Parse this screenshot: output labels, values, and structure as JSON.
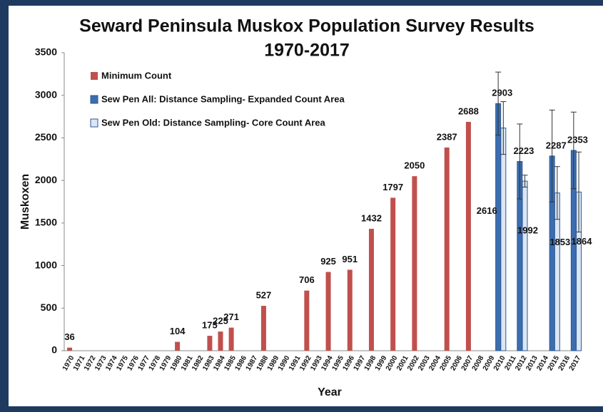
{
  "chart_data": {
    "type": "bar",
    "title": "Seward Peninsula Muskox Population Survey Results",
    "subtitle": "1970-2017",
    "x_label": "Year",
    "y_label": "Muskoxen",
    "categories": [
      "1970",
      "1971",
      "1972",
      "1973",
      "1974",
      "1975",
      "1976",
      "1977",
      "1978",
      "1979",
      "1980",
      "1981",
      "1982",
      "1983",
      "1984",
      "1985",
      "1986",
      "1987",
      "1988",
      "1989",
      "1990",
      "1991",
      "1992",
      "1993",
      "1994",
      "1995",
      "1996",
      "1997",
      "1998",
      "1999",
      "2000",
      "2001",
      "2002",
      "2003",
      "2004",
      "2005",
      "2006",
      "2007",
      "2008",
      "2009",
      "2010",
      "2011",
      "2012",
      "2013",
      "2014",
      "2015",
      "2016",
      "2017"
    ],
    "series": [
      {
        "name": "Minimum Count",
        "color": "#c0504d",
        "values": [
          36,
          null,
          null,
          null,
          null,
          null,
          null,
          null,
          null,
          null,
          104,
          null,
          null,
          175,
          225,
          271,
          null,
          null,
          527,
          null,
          null,
          null,
          706,
          null,
          925,
          null,
          951,
          null,
          1432,
          null,
          1797,
          null,
          2050,
          null,
          null,
          2387,
          null,
          2688,
          null,
          null,
          null,
          null,
          null,
          null,
          null,
          null,
          null,
          null
        ]
      },
      {
        "name": "Sew Pen All:  Distance Sampling- Expanded Count Area",
        "color": "#3c6db0",
        "values": [
          null,
          null,
          null,
          null,
          null,
          null,
          null,
          null,
          null,
          null,
          null,
          null,
          null,
          null,
          null,
          null,
          null,
          null,
          null,
          null,
          null,
          null,
          null,
          null,
          null,
          null,
          null,
          null,
          null,
          null,
          null,
          null,
          null,
          null,
          null,
          null,
          null,
          null,
          null,
          null,
          2903,
          null,
          2223,
          null,
          null,
          2287,
          null,
          2353
        ],
        "errors": [
          null,
          null,
          null,
          null,
          null,
          null,
          null,
          null,
          null,
          null,
          null,
          null,
          null,
          null,
          null,
          null,
          null,
          null,
          null,
          null,
          null,
          null,
          null,
          null,
          null,
          null,
          null,
          null,
          null,
          null,
          null,
          null,
          null,
          null,
          null,
          null,
          null,
          null,
          null,
          null,
          370,
          null,
          440,
          null,
          null,
          540,
          null,
          450
        ]
      },
      {
        "name": "Sew Pen Old: Distance Sampling- Core Count Area",
        "color": "#dce6f2",
        "values": [
          null,
          null,
          null,
          null,
          null,
          null,
          null,
          null,
          null,
          null,
          null,
          null,
          null,
          null,
          null,
          null,
          null,
          null,
          null,
          null,
          null,
          null,
          null,
          null,
          null,
          null,
          null,
          null,
          null,
          null,
          null,
          null,
          null,
          null,
          null,
          null,
          null,
          null,
          null,
          null,
          2616,
          null,
          1992,
          null,
          null,
          1853,
          null,
          1864
        ],
        "errors": [
          null,
          null,
          null,
          null,
          null,
          null,
          null,
          null,
          null,
          null,
          null,
          null,
          null,
          null,
          null,
          null,
          null,
          null,
          null,
          null,
          null,
          null,
          null,
          null,
          null,
          null,
          null,
          null,
          null,
          null,
          null,
          null,
          null,
          null,
          null,
          null,
          null,
          null,
          null,
          null,
          310,
          null,
          70,
          null,
          null,
          310,
          null,
          470
        ]
      }
    ],
    "ylim": [
      0,
      3500
    ],
    "yticks": [
      0,
      500,
      1000,
      1500,
      2000,
      2500,
      3000,
      3500
    ],
    "grid": false,
    "legend": "top-left"
  }
}
